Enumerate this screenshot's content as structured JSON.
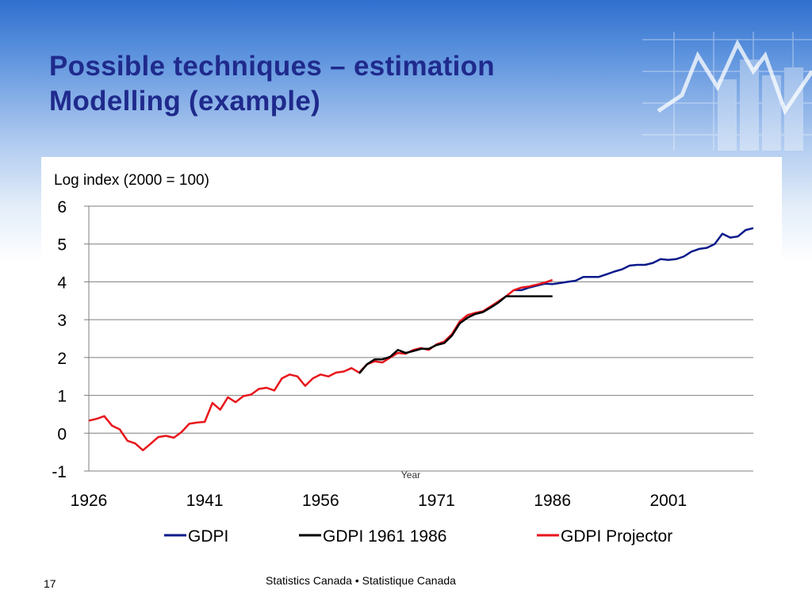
{
  "slide": {
    "title_line1": "Possible techniques – estimation",
    "title_line2": "Modelling (example)",
    "footer": "Statistics Canada • Statistique Canada",
    "page_number": "17"
  },
  "colors": {
    "title": "#1f2a8c",
    "gdpi": "#0a1a8a",
    "gdpi_1961_1986": "#000000",
    "gdpi_projector": "#e8151b",
    "gridline": "#7f7f7f"
  },
  "chart_data": {
    "type": "line",
    "title": "",
    "ylabel": "Log index (2000 = 100)",
    "xlabel": "Year",
    "xlim": [
      1926,
      2012
    ],
    "ylim": [
      -1,
      6
    ],
    "x_ticks": [
      "1926",
      "1941",
      "1956",
      "1971",
      "1986",
      "2001"
    ],
    "y_ticks": [
      "-1",
      "0",
      "1",
      "2",
      "3",
      "4",
      "5",
      "6"
    ],
    "grid": "horizontal",
    "legend_position": "bottom",
    "series": [
      {
        "name": "GDPI",
        "color": "#0a1a8a",
        "x": [
          1981,
          1982,
          1983,
          1984,
          1985,
          1986,
          1987,
          1988,
          1989,
          1990,
          1991,
          1992,
          1993,
          1994,
          1995,
          1996,
          1997,
          1998,
          1999,
          2000,
          2001,
          2002,
          2003,
          2004,
          2005,
          2006,
          2007,
          2008,
          2009,
          2010,
          2011,
          2012
        ],
        "y": [
          3.78,
          3.78,
          3.85,
          3.9,
          3.95,
          3.94,
          3.97,
          4.0,
          4.03,
          4.13,
          4.13,
          4.13,
          4.2,
          4.27,
          4.33,
          4.43,
          4.45,
          4.45,
          4.5,
          4.6,
          4.58,
          4.6,
          4.67,
          4.8,
          4.87,
          4.9,
          5.0,
          5.27,
          5.17,
          5.2,
          5.37,
          5.42
        ]
      },
      {
        "name": "GDPI 1961 1986",
        "color": "#000000",
        "x": [
          1961,
          1962,
          1963,
          1964,
          1965,
          1966,
          1967,
          1968,
          1969,
          1970,
          1971,
          1972,
          1973,
          1974,
          1975,
          1976,
          1977,
          1978,
          1979,
          1980,
          1981,
          1982,
          1983,
          1984,
          1985,
          1986
        ],
        "y": [
          1.58,
          1.82,
          1.95,
          1.95,
          2.02,
          2.2,
          2.12,
          2.17,
          2.23,
          2.23,
          2.33,
          2.38,
          2.58,
          2.9,
          3.05,
          3.15,
          3.2,
          3.32,
          3.45,
          3.62,
          3.62,
          3.62,
          3.62,
          3.62,
          3.62,
          3.62
        ]
      },
      {
        "name": "GDPI Projector",
        "color": "#e8151b",
        "x": [
          1926,
          1927,
          1928,
          1929,
          1930,
          1931,
          1932,
          1933,
          1934,
          1935,
          1936,
          1937,
          1938,
          1939,
          1940,
          1941,
          1942,
          1943,
          1944,
          1945,
          1946,
          1947,
          1948,
          1949,
          1950,
          1951,
          1952,
          1953,
          1954,
          1955,
          1956,
          1957,
          1958,
          1959,
          1960,
          1961,
          1962,
          1963,
          1964,
          1965,
          1966,
          1967,
          1968,
          1969,
          1970,
          1971,
          1972,
          1973,
          1974,
          1975,
          1976,
          1977,
          1978,
          1979,
          1980,
          1981,
          1982,
          1983,
          1984,
          1985,
          1986
        ],
        "y": [
          0.33,
          0.38,
          0.45,
          0.2,
          0.1,
          -0.2,
          -0.27,
          -0.45,
          -0.28,
          -0.1,
          -0.07,
          -0.12,
          0.03,
          0.25,
          0.28,
          0.3,
          0.8,
          0.62,
          0.95,
          0.82,
          0.98,
          1.02,
          1.17,
          1.2,
          1.13,
          1.45,
          1.55,
          1.5,
          1.25,
          1.45,
          1.55,
          1.5,
          1.6,
          1.63,
          1.72,
          1.6,
          1.82,
          1.9,
          1.87,
          2.0,
          2.12,
          2.1,
          2.2,
          2.25,
          2.2,
          2.35,
          2.42,
          2.62,
          2.95,
          3.12,
          3.18,
          3.22,
          3.35,
          3.48,
          3.62,
          3.78,
          3.85,
          3.88,
          3.93,
          3.98,
          4.05
        ]
      }
    ]
  }
}
